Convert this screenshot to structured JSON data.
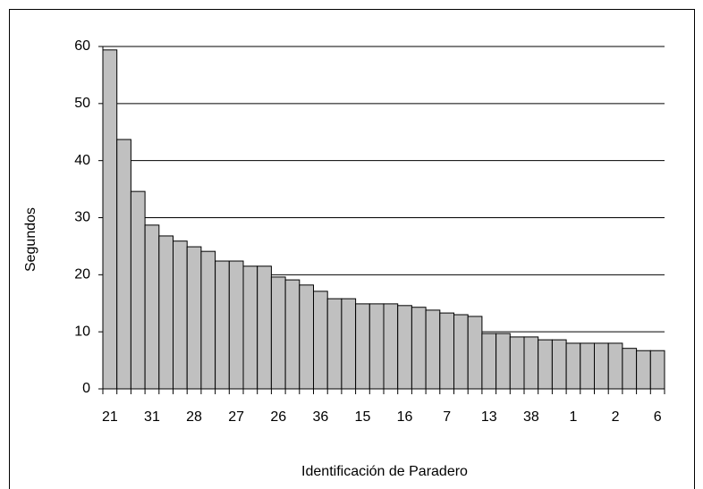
{
  "chart_data": {
    "type": "bar",
    "categories": [
      "21",
      null,
      null,
      "31",
      null,
      null,
      "28",
      null,
      null,
      "27",
      null,
      null,
      "26",
      null,
      null,
      "36",
      null,
      null,
      "15",
      null,
      null,
      "16",
      null,
      null,
      "7",
      null,
      null,
      "13",
      null,
      null,
      "38",
      null,
      null,
      "1",
      null,
      null,
      "2",
      null,
      null,
      "6"
    ],
    "values": [
      59.4,
      43.7,
      34.6,
      28.7,
      26.8,
      25.9,
      24.9,
      24.1,
      22.4,
      22.4,
      21.5,
      21.5,
      19.6,
      19.1,
      18.2,
      17.1,
      15.8,
      15.8,
      14.9,
      14.9,
      14.9,
      14.6,
      14.3,
      13.8,
      13.3,
      13.0,
      12.7,
      9.7,
      9.7,
      9.1,
      9.1,
      8.6,
      8.6,
      8.0,
      8.0,
      8.0,
      8.0,
      7.1,
      6.7,
      6.7
    ],
    "color": "#c0c0c0",
    "ylim": [
      0,
      60
    ],
    "yticks": [
      0,
      10,
      20,
      30,
      40,
      50,
      60
    ],
    "grid": true,
    "x_label": "Identificación de Paradero",
    "y_label": "Segundos"
  }
}
